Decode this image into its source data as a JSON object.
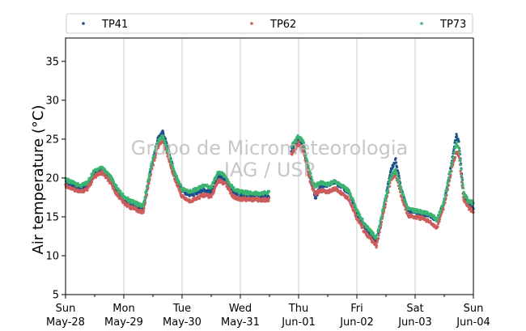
{
  "chart_data": {
    "type": "scatter",
    "title": "",
    "xlabel": "",
    "ylabel": "Air temperature (°C)",
    "ylim": [
      5,
      38
    ],
    "yticks": [
      5,
      10,
      15,
      20,
      25,
      30,
      35
    ],
    "xlim": [
      "2023-05-28 00:00",
      "2023-06-04 00:00"
    ],
    "xticks": [
      {
        "date": "2023-05-28",
        "day": "Sun",
        "label": "May-28"
      },
      {
        "date": "2023-05-29",
        "day": "Mon",
        "label": "May-29"
      },
      {
        "date": "2023-05-30",
        "day": "Tue",
        "label": "May-30"
      },
      {
        "date": "2023-05-31",
        "day": "Wed",
        "label": "May-31"
      },
      {
        "date": "2023-06-01",
        "day": "Thu",
        "label": "Jun-01"
      },
      {
        "date": "2023-06-02",
        "day": "Fri",
        "label": "Jun-02"
      },
      {
        "date": "2023-06-03",
        "day": "Sat",
        "label": "Jun-03"
      },
      {
        "date": "2023-06-04",
        "day": "Sun",
        "label": "Jun-04"
      }
    ],
    "grid": "vertical",
    "legend_position": "top",
    "watermark": [
      "Grupo de Micrometeorologia",
      "IAG / USP"
    ],
    "series": [
      {
        "name": "TP41",
        "color": "#1f4e8c",
        "points": [
          [
            "2023-05-28 00:00",
            19.4
          ],
          [
            "2023-05-28 03:00",
            19.0
          ],
          [
            "2023-05-28 06:00",
            18.6
          ],
          [
            "2023-05-28 09:00",
            19.0
          ],
          [
            "2023-05-28 12:00",
            20.6
          ],
          [
            "2023-05-28 15:00",
            21.1
          ],
          [
            "2023-05-28 18:00",
            20.0
          ],
          [
            "2023-05-28 21:00",
            18.4
          ],
          [
            "2023-05-29 00:00",
            17.2
          ],
          [
            "2023-05-29 03:00",
            16.6
          ],
          [
            "2023-05-29 06:00",
            16.2
          ],
          [
            "2023-05-29 08:00",
            16.1
          ],
          [
            "2023-05-29 11:00",
            21.0
          ],
          [
            "2023-05-29 14:00",
            25.0
          ],
          [
            "2023-05-29 16:00",
            26.0
          ],
          [
            "2023-05-29 18:00",
            24.0
          ],
          [
            "2023-05-29 21:00",
            20.5
          ],
          [
            "2023-05-30 00:00",
            18.4
          ],
          [
            "2023-05-30 03:00",
            17.8
          ],
          [
            "2023-05-30 06:00",
            18.0
          ],
          [
            "2023-05-30 09:00",
            18.4
          ],
          [
            "2023-05-30 12:00",
            18.2
          ],
          [
            "2023-05-30 15:00",
            20.3
          ],
          [
            "2023-05-30 18:00",
            19.8
          ],
          [
            "2023-05-30 21:00",
            18.2
          ],
          [
            "2023-05-31 00:00",
            17.8
          ],
          [
            "2023-05-31 06:00",
            17.8
          ],
          [
            "2023-05-31 12:00",
            17.6
          ],
          [
            "2023-05-31 14:00",
            null
          ],
          [
            "2023-05-31 21:00",
            23.5
          ],
          [
            "2023-06-01 00:00",
            25.0
          ],
          [
            "2023-06-01 02:00",
            24.0
          ],
          [
            "2023-06-01 04:00",
            21.0
          ],
          [
            "2023-06-01 06:00",
            18.5
          ],
          [
            "2023-06-01 07:00",
            17.4
          ],
          [
            "2023-06-01 09:00",
            19.0
          ],
          [
            "2023-06-01 12:00",
            19.0
          ],
          [
            "2023-06-01 15:00",
            19.5
          ],
          [
            "2023-06-01 18:00",
            18.8
          ],
          [
            "2023-06-01 21:00",
            18.0
          ],
          [
            "2023-06-02 00:00",
            15.5
          ],
          [
            "2023-06-02 03:00",
            13.8
          ],
          [
            "2023-06-02 06:00",
            12.5
          ],
          [
            "2023-06-02 08:00",
            11.5
          ],
          [
            "2023-06-02 11:00",
            16.0
          ],
          [
            "2023-06-02 14:00",
            21.0
          ],
          [
            "2023-06-02 16:00",
            22.3
          ],
          [
            "2023-06-02 18:00",
            19.0
          ],
          [
            "2023-06-02 21:00",
            15.8
          ],
          [
            "2023-06-03 00:00",
            15.6
          ],
          [
            "2023-06-03 03:00",
            15.4
          ],
          [
            "2023-06-03 06:00",
            15.2
          ],
          [
            "2023-06-03 09:00",
            14.5
          ],
          [
            "2023-06-03 12:00",
            17.0
          ],
          [
            "2023-06-03 15:00",
            22.0
          ],
          [
            "2023-06-03 17:00",
            25.5
          ],
          [
            "2023-06-03 18:00",
            24.5
          ],
          [
            "2023-06-03 20:00",
            18.0
          ],
          [
            "2023-06-03 22:00",
            16.8
          ],
          [
            "2023-06-04 00:00",
            16.0
          ]
        ]
      },
      {
        "name": "TP62",
        "color": "#cd5c5c",
        "points": [
          [
            "2023-05-28 00:00",
            19.0
          ],
          [
            "2023-05-28 03:00",
            18.6
          ],
          [
            "2023-05-28 06:00",
            18.2
          ],
          [
            "2023-05-28 09:00",
            18.6
          ],
          [
            "2023-05-28 12:00",
            20.2
          ],
          [
            "2023-05-28 15:00",
            20.7
          ],
          [
            "2023-05-28 18:00",
            19.6
          ],
          [
            "2023-05-28 21:00",
            18.0
          ],
          [
            "2023-05-29 00:00",
            16.8
          ],
          [
            "2023-05-29 03:00",
            16.2
          ],
          [
            "2023-05-29 06:00",
            15.8
          ],
          [
            "2023-05-29 08:00",
            15.6
          ],
          [
            "2023-05-29 11:00",
            20.5
          ],
          [
            "2023-05-29 14:00",
            24.0
          ],
          [
            "2023-05-29 16:00",
            25.0
          ],
          [
            "2023-05-29 18:00",
            23.0
          ],
          [
            "2023-05-29 21:00",
            19.8
          ],
          [
            "2023-05-30 00:00",
            17.6
          ],
          [
            "2023-05-30 03:00",
            17.0
          ],
          [
            "2023-05-30 06:00",
            17.4
          ],
          [
            "2023-05-30 09:00",
            17.8
          ],
          [
            "2023-05-30 12:00",
            17.6
          ],
          [
            "2023-05-30 15:00",
            19.7
          ],
          [
            "2023-05-30 18:00",
            19.2
          ],
          [
            "2023-05-30 21:00",
            17.6
          ],
          [
            "2023-05-31 00:00",
            17.3
          ],
          [
            "2023-05-31 06:00",
            17.2
          ],
          [
            "2023-05-31 12:00",
            17.2
          ],
          [
            "2023-05-31 14:00",
            null
          ],
          [
            "2023-05-31 21:00",
            23.0
          ],
          [
            "2023-06-01 00:00",
            24.5
          ],
          [
            "2023-06-01 02:00",
            23.5
          ],
          [
            "2023-06-01 04:00",
            20.5
          ],
          [
            "2023-06-01 06:00",
            18.4
          ],
          [
            "2023-06-01 07:00",
            18.0
          ],
          [
            "2023-06-01 09:00",
            18.4
          ],
          [
            "2023-06-01 12:00",
            18.2
          ],
          [
            "2023-06-01 15:00",
            18.6
          ],
          [
            "2023-06-01 18:00",
            18.0
          ],
          [
            "2023-06-01 21:00",
            17.2
          ],
          [
            "2023-06-02 00:00",
            14.8
          ],
          [
            "2023-06-02 03:00",
            13.2
          ],
          [
            "2023-06-02 06:00",
            12.0
          ],
          [
            "2023-06-02 08:00",
            11.2
          ],
          [
            "2023-06-02 11:00",
            15.5
          ],
          [
            "2023-06-02 14:00",
            19.8
          ],
          [
            "2023-06-02 16:00",
            20.5
          ],
          [
            "2023-06-02 18:00",
            18.0
          ],
          [
            "2023-06-02 21:00",
            15.2
          ],
          [
            "2023-06-03 00:00",
            15.0
          ],
          [
            "2023-06-03 03:00",
            14.8
          ],
          [
            "2023-06-03 06:00",
            14.4
          ],
          [
            "2023-06-03 09:00",
            13.6
          ],
          [
            "2023-06-03 12:00",
            16.5
          ],
          [
            "2023-06-03 15:00",
            21.0
          ],
          [
            "2023-06-03 17:00",
            23.5
          ],
          [
            "2023-06-03 18:00",
            23.0
          ],
          [
            "2023-06-03 20:00",
            17.2
          ],
          [
            "2023-06-03 22:00",
            16.2
          ],
          [
            "2023-06-04 00:00",
            15.6
          ]
        ]
      },
      {
        "name": "TP73",
        "color": "#3cb371",
        "points": [
          [
            "2023-05-28 00:00",
            19.8
          ],
          [
            "2023-05-28 03:00",
            19.4
          ],
          [
            "2023-05-28 06:00",
            19.0
          ],
          [
            "2023-05-28 09:00",
            19.4
          ],
          [
            "2023-05-28 12:00",
            21.0
          ],
          [
            "2023-05-28 15:00",
            21.4
          ],
          [
            "2023-05-28 18:00",
            20.4
          ],
          [
            "2023-05-28 21:00",
            18.8
          ],
          [
            "2023-05-29 00:00",
            17.6
          ],
          [
            "2023-05-29 03:00",
            17.0
          ],
          [
            "2023-05-29 06:00",
            16.6
          ],
          [
            "2023-05-29 08:00",
            16.4
          ],
          [
            "2023-05-29 11:00",
            21.2
          ],
          [
            "2023-05-29 14:00",
            24.6
          ],
          [
            "2023-05-29 16:00",
            25.4
          ],
          [
            "2023-05-29 18:00",
            23.6
          ],
          [
            "2023-05-29 21:00",
            20.6
          ],
          [
            "2023-05-30 00:00",
            18.6
          ],
          [
            "2023-05-30 03:00",
            18.2
          ],
          [
            "2023-05-30 06:00",
            18.6
          ],
          [
            "2023-05-30 09:00",
            19.0
          ],
          [
            "2023-05-30 12:00",
            18.8
          ],
          [
            "2023-05-30 15:00",
            20.8
          ],
          [
            "2023-05-30 18:00",
            20.2
          ],
          [
            "2023-05-30 21:00",
            18.6
          ],
          [
            "2023-05-31 00:00",
            18.2
          ],
          [
            "2023-05-31 06:00",
            18.0
          ],
          [
            "2023-05-31 12:00",
            18.1
          ],
          [
            "2023-05-31 14:00",
            null
          ],
          [
            "2023-05-31 21:00",
            24.0
          ],
          [
            "2023-06-01 00:00",
            25.4
          ],
          [
            "2023-06-01 02:00",
            24.6
          ],
          [
            "2023-06-01 04:00",
            21.4
          ],
          [
            "2023-06-01 06:00",
            19.4
          ],
          [
            "2023-06-01 07:00",
            19.0
          ],
          [
            "2023-06-01 09:00",
            19.4
          ],
          [
            "2023-06-01 12:00",
            19.2
          ],
          [
            "2023-06-01 15:00",
            19.6
          ],
          [
            "2023-06-01 18:00",
            19.0
          ],
          [
            "2023-06-01 21:00",
            18.2
          ],
          [
            "2023-06-02 00:00",
            15.8
          ],
          [
            "2023-06-02 03:00",
            14.2
          ],
          [
            "2023-06-02 06:00",
            13.0
          ],
          [
            "2023-06-02 08:00",
            12.2
          ],
          [
            "2023-06-02 11:00",
            16.2
          ],
          [
            "2023-06-02 14:00",
            20.2
          ],
          [
            "2023-06-02 16:00",
            21.0
          ],
          [
            "2023-06-02 18:00",
            18.8
          ],
          [
            "2023-06-02 21:00",
            16.0
          ],
          [
            "2023-06-03 00:00",
            15.8
          ],
          [
            "2023-06-03 03:00",
            15.6
          ],
          [
            "2023-06-03 06:00",
            15.4
          ],
          [
            "2023-06-03 09:00",
            14.6
          ],
          [
            "2023-06-03 12:00",
            17.2
          ],
          [
            "2023-06-03 15:00",
            21.6
          ],
          [
            "2023-06-03 17:00",
            24.6
          ],
          [
            "2023-06-03 18:00",
            24.0
          ],
          [
            "2023-06-03 20:00",
            18.0
          ],
          [
            "2023-06-03 22:00",
            17.0
          ],
          [
            "2023-06-04 00:00",
            16.8
          ]
        ]
      }
    ]
  }
}
